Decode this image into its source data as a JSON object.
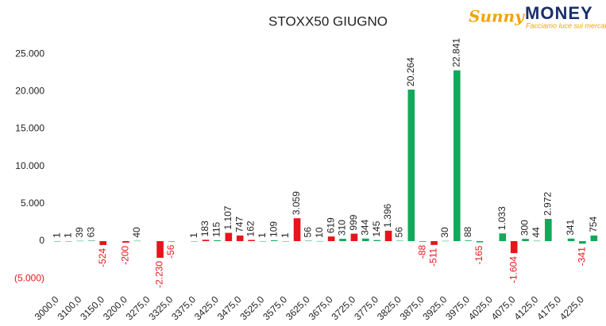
{
  "logo": {
    "script": "Sunny",
    "name": "MONEY",
    "tagline": "Facciamo luce sui mercati"
  },
  "chart_data": {
    "type": "bar",
    "title": "STOXX50 GIUGNO",
    "categories": [
      "3000,0",
      null,
      "3100,0",
      null,
      "3150,0",
      null,
      "3200,0",
      null,
      "3275,0",
      null,
      "3325,0",
      null,
      "3375,0",
      null,
      "3425,0",
      null,
      "3475,0",
      null,
      "3525,0",
      null,
      "3575,0",
      null,
      "3625,0",
      null,
      "3675,0",
      null,
      "3725,0",
      null,
      "3775,0",
      null,
      "3825,0",
      null,
      "3875,0",
      null,
      "3925,0",
      null,
      "3975,0",
      null,
      "4025,0",
      null,
      "4075,0",
      null,
      "4125,0",
      null,
      "4175,0",
      null,
      "4225,0",
      null
    ],
    "values": [
      1,
      1,
      39,
      63,
      -524,
      null,
      -200,
      40,
      null,
      -2230,
      -56,
      null,
      1,
      183,
      115,
      1107,
      747,
      162,
      1,
      109,
      1,
      3059,
      56,
      10,
      619,
      310,
      999,
      344,
      145,
      1396,
      56,
      20264,
      -88,
      -511,
      30,
      22841,
      88,
      -165,
      null,
      1033,
      -1604,
      300,
      44,
      2972,
      null,
      341,
      -341,
      754
    ],
    "value_labels": [
      "1",
      "1",
      "39",
      "63",
      "-524",
      null,
      "-200",
      "40",
      null,
      "-2.230",
      "-56",
      null,
      "1",
      "183",
      "115",
      "1.107",
      "747",
      "162",
      "1",
      "109",
      "1",
      "3.059",
      "56",
      "10",
      "619",
      "310",
      "999",
      "344",
      "145",
      "1.396",
      "56",
      "20.264",
      "-88",
      "-511",
      "30",
      "22.841",
      "88",
      "-165",
      null,
      "1.033",
      "-1.604",
      "300",
      "44",
      "2.972",
      null,
      "341",
      "-341",
      "754"
    ],
    "colors": [
      "#14a85a",
      "#14a85a",
      "#14a85a",
      "#14a85a",
      "#e8141b",
      null,
      "#e8141b",
      "#14a85a",
      null,
      "#e8141b",
      "#e8141b",
      null,
      "#14a85a",
      "#e8141b",
      "#14a85a",
      "#e8141b",
      "#e8141b",
      "#e8141b",
      "#14a85a",
      "#14a85a",
      "#14a85a",
      "#e8141b",
      "#14a85a",
      "#14a85a",
      "#e8141b",
      "#14a85a",
      "#e8141b",
      "#14a85a",
      "#14a85a",
      "#e8141b",
      "#14a85a",
      "#14a85a",
      "#14a85a",
      "#e8141b",
      "#14a85a",
      "#14a85a",
      "#14a85a",
      "#14a85a",
      null,
      "#14a85a",
      "#e8141b",
      "#14a85a",
      "#14a85a",
      "#14a85a",
      null,
      "#14a85a",
      "#14a85a",
      "#14a85a"
    ],
    "negative_label_color": "#e8141b",
    "ylim": [
      -7000,
      28000
    ],
    "yticks": [
      {
        "value": -5000,
        "label": "(5.000)"
      },
      0,
      {
        "value": 5000,
        "label": "5.000"
      },
      {
        "value": 10000,
        "label": "10.000"
      },
      {
        "value": 15000,
        "label": "15.000"
      },
      {
        "value": 20000,
        "label": "20.000"
      },
      {
        "value": 25000,
        "label": "25.000"
      }
    ],
    "grid": false
  }
}
